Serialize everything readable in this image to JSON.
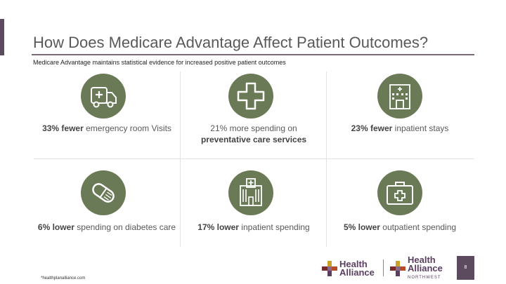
{
  "slide": {
    "title": "How Does Medicare Advantage Affect Patient Outcomes?",
    "subtitle": "Medicare Advantage maintains statistical evidence for increased positive patient outcomes",
    "footnote": "*healthplanalliance.com",
    "page_number": "8"
  },
  "items": [
    {
      "icon": "ambulance-icon",
      "bold_pre": "33% fewer",
      "text_post": " emergency room Visits",
      "text_pre": ""
    },
    {
      "icon": "medical-cross-icon",
      "text_pre": "21% more spending on ",
      "bold_post": "preventative care services"
    },
    {
      "icon": "hospital-building-icon",
      "bold_pre": "23% fewer",
      "text_post": " inpatient stays",
      "text_pre": ""
    },
    {
      "icon": "pill-capsule-icon",
      "bold_pre": "6% lower",
      "text_post": " spending on diabetes care",
      "text_pre": ""
    },
    {
      "icon": "hospital-tower-icon",
      "bold_pre": "17% lower",
      "text_post": " inpatient spending",
      "text_pre": ""
    },
    {
      "icon": "first-aid-kit-icon",
      "bold_pre": "5% lower",
      "text_post": " outpatient spending",
      "text_pre": ""
    }
  ],
  "logos": [
    {
      "line1": "Health",
      "line2": "Alliance",
      "line3": ""
    },
    {
      "line1": "Health",
      "line2": "Alliance",
      "line3": "NORTHWEST"
    }
  ],
  "colors": {
    "icon_circle": "#6b7a56",
    "accent": "#5c4a5f",
    "text": "#595959"
  }
}
